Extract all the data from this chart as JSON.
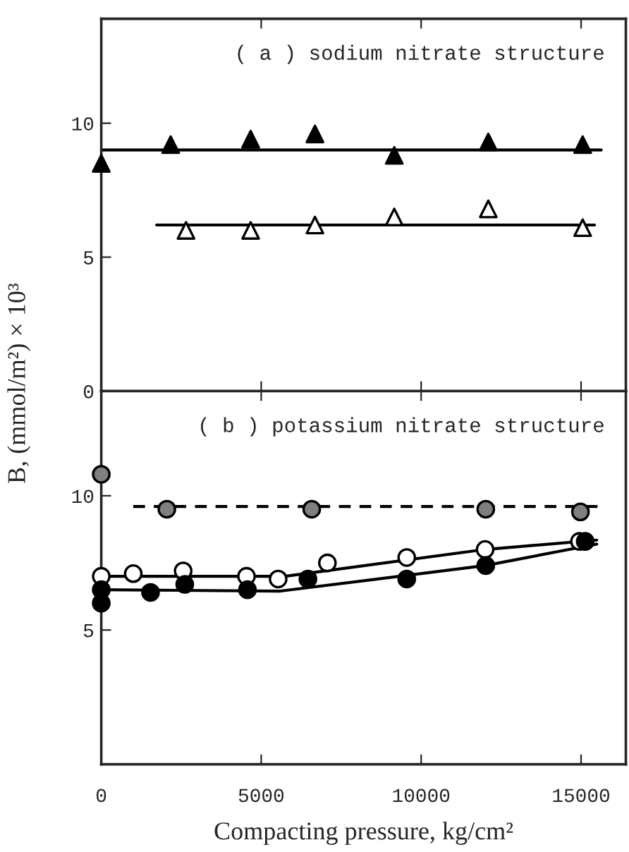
{
  "chart_data": [
    {
      "type": "scatter",
      "title": "( a ) sodium nitrate structure",
      "ylabel": "B, (mmol/m²) × 10³",
      "xlim": [
        0,
        16400
      ],
      "ylim": [
        0,
        13.9
      ],
      "xticks": [
        0,
        5000,
        10000,
        15000
      ],
      "yticks": [
        0,
        5,
        10
      ],
      "tick_labels": "y",
      "grid": false,
      "legend": false,
      "series": [
        {
          "marker": "triangle",
          "color": "#000000",
          "x": [
            0,
            2170,
            4670,
            6680,
            9160,
            12100,
            15050
          ],
          "values": [
            8.5,
            9.2,
            9.4,
            9.6,
            8.8,
            9.3,
            9.2
          ]
        },
        {
          "marker": "triangle",
          "color": "#ffffff",
          "x": [
            2650,
            4670,
            6680,
            9160,
            12100,
            15050
          ],
          "values": [
            6.0,
            6.0,
            6.2,
            6.5,
            6.8,
            6.1
          ]
        },
        {
          "type": "line",
          "marker": "none",
          "line_style": "solid",
          "color": "#000000",
          "x": [
            0,
            15630
          ],
          "values": [
            9.0,
            9.0
          ]
        },
        {
          "type": "line",
          "marker": "none",
          "line_style": "solid",
          "color": "#000000",
          "x": [
            1730,
            15420
          ],
          "values": [
            6.2,
            6.2
          ]
        }
      ]
    },
    {
      "type": "scatter",
      "title": "( b ) potassium nitrate structure",
      "xlabel": "Compacting pressure, kg/cm²",
      "xlim": [
        0,
        16400
      ],
      "ylim": [
        0,
        13.9
      ],
      "xticks": [
        0,
        5000,
        10000,
        15000
      ],
      "yticks": [
        5,
        10
      ],
      "grid": false,
      "legend": false,
      "series": [
        {
          "marker": "circle",
          "color": "#7f7f7f",
          "x": [
            0,
            2050,
            6580,
            12020,
            14980
          ],
          "values": [
            10.8,
            9.5,
            9.5,
            9.5,
            9.4
          ]
        },
        {
          "marker": "circle",
          "color": "#ffffff",
          "x": [
            0,
            1000,
            2560,
            4540,
            5530,
            7070,
            9550,
            12000,
            14950
          ],
          "values": [
            7.0,
            7.1,
            7.2,
            7.0,
            6.9,
            7.5,
            7.7,
            8.0,
            8.3
          ]
        },
        {
          "marker": "circle",
          "color": "#000000",
          "x": [
            0,
            0,
            1540,
            2610,
            4570,
            6460,
            9550,
            12020,
            15130
          ],
          "values": [
            6.5,
            6.0,
            6.4,
            6.7,
            6.5,
            6.9,
            6.9,
            7.4,
            8.3
          ]
        },
        {
          "type": "line",
          "marker": "none",
          "line_style": "dashed",
          "color": "#000000",
          "x": [
            1000,
            15630
          ],
          "values": [
            9.6,
            9.6
          ]
        },
        {
          "type": "line",
          "marker": "none",
          "line_style": "solid",
          "color": "#000000",
          "x": [
            0,
            5740,
            12000,
            15490
          ],
          "values": [
            7.0,
            7.0,
            8.0,
            8.35
          ]
        },
        {
          "type": "line",
          "marker": "none",
          "line_style": "solid",
          "color": "#000000",
          "x": [
            0,
            5600,
            12000,
            15490
          ],
          "values": [
            6.5,
            6.45,
            7.4,
            8.2
          ]
        }
      ]
    }
  ]
}
